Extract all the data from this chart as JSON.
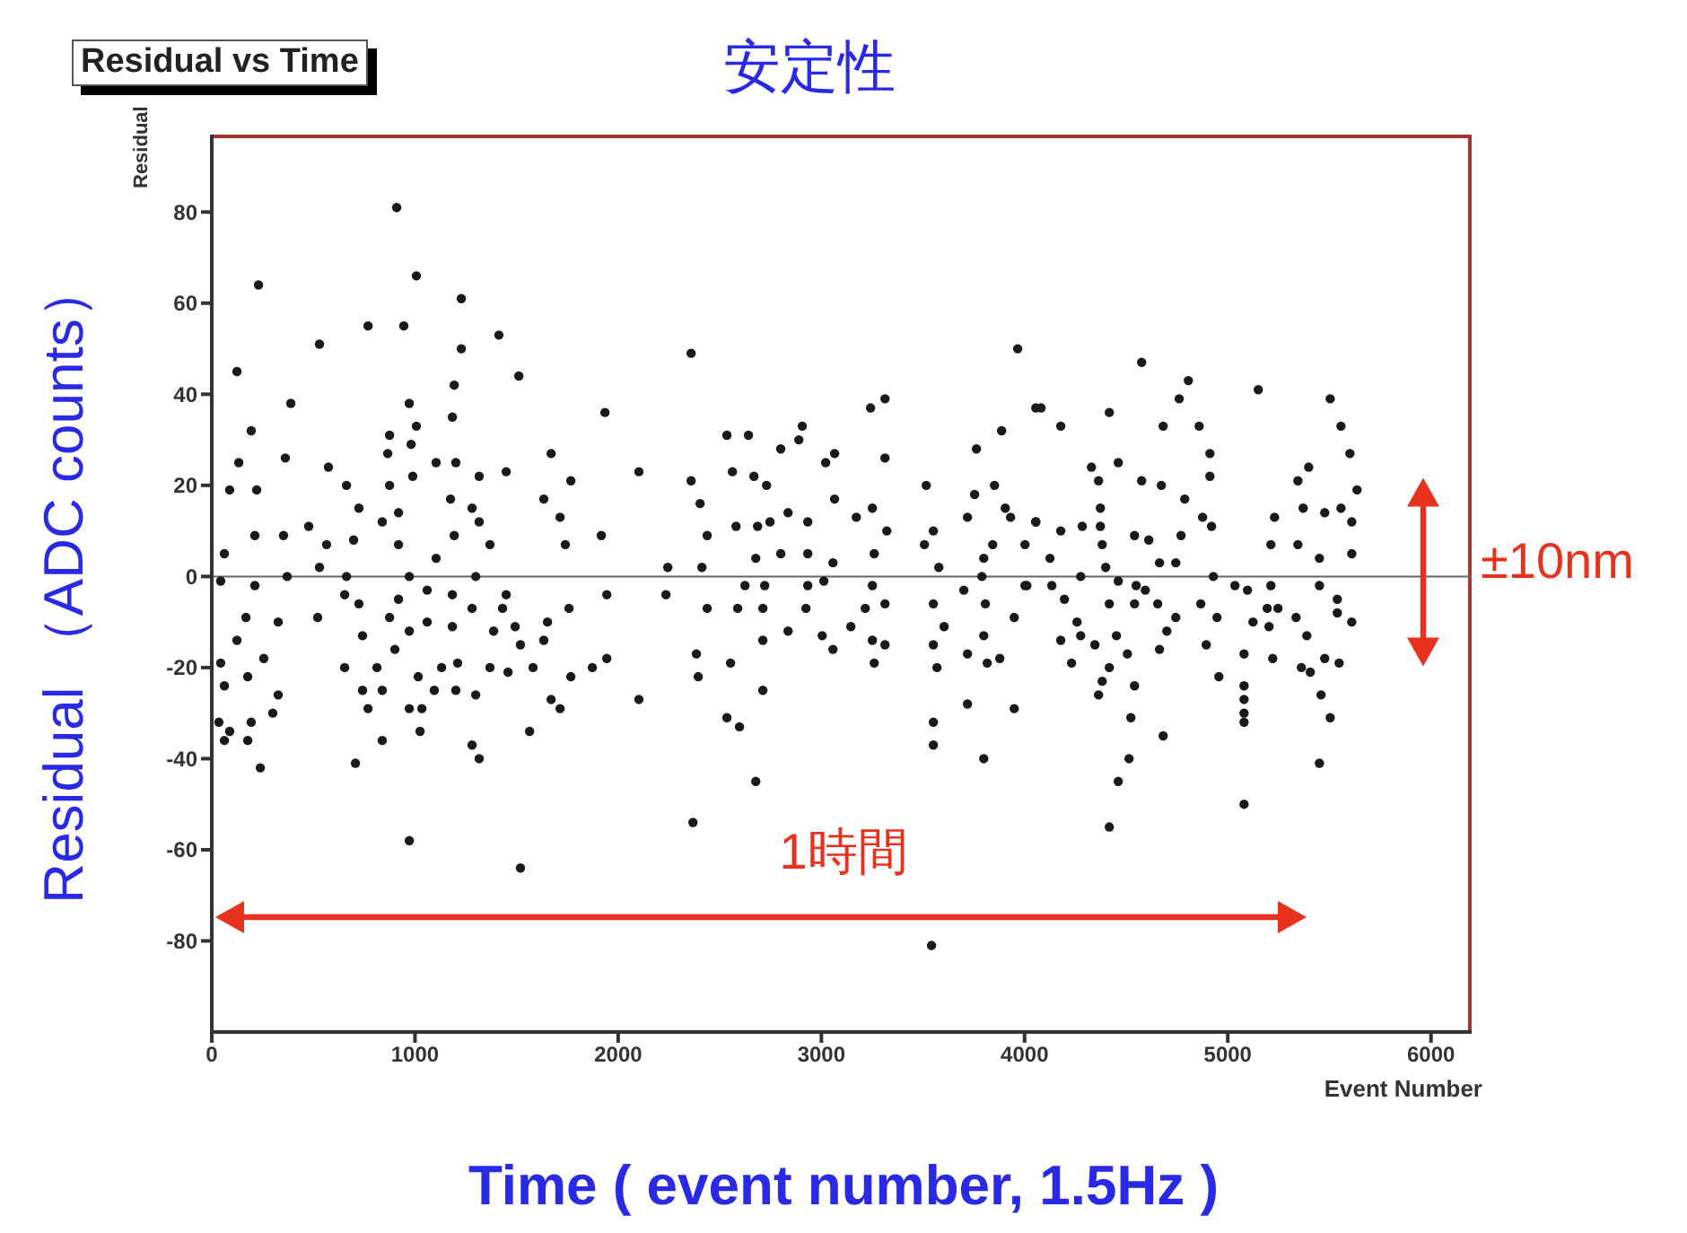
{
  "chart_data": {
    "type": "scatter",
    "title": "Residual vs Time",
    "subtitle": "安定性",
    "xlabel": "Event Number",
    "ylabel": "Residual",
    "x": [
      910,
      1007,
      230,
      1228,
      769,
      945,
      530,
      1413,
      1228,
      1511,
      124,
      1193,
      389,
      972,
      1935,
      1184,
      1007,
      194,
      875,
      981,
      866,
      1670,
      362,
      1104,
      1201,
      574,
      133,
      1449,
      663,
      875,
      989,
      1316,
      1767,
      88,
      221,
      1634,
      1175,
      724,
      919,
      1281,
      1714,
      839,
      1316,
      353,
      477,
      212,
      565,
      698,
      919,
      1193,
      1369,
      1740,
      1917,
      62,
      1104,
      530,
      371,
      663,
      972,
      1299,
      212,
      44,
      1060,
      654,
      1184,
      1449,
      1944,
      724,
      919,
      1281,
      1431,
      1758,
      168,
      327,
      521,
      875,
      1060,
      1184,
      1493,
      1652,
      742,
      972,
      1387,
      124,
      901,
      1634,
      1519,
      256,
      654,
      813,
      1210,
      1131,
      1369,
      1581,
      1873,
      1944,
      44,
      177,
      1016,
      1458,
      1767,
      62,
      742,
      839,
      1095,
      1201,
      1299,
      1670,
      1714,
      327,
      300,
      769,
      972,
      1034,
      194,
      35,
      88,
      1025,
      1564,
      839,
      177,
      62,
      1281,
      1316,
      707,
      239,
      972,
      1519,
      2359,
      2102,
      2535,
      2641,
      2359,
      2562,
      2403,
      2668,
      2730,
      2800,
      2906,
      2889,
      3021,
      3065,
      3242,
      3313,
      3313,
      2438,
      2580,
      2686,
      2747,
      2836,
      2933,
      3065,
      3172,
      3251,
      3322,
      2800,
      2933,
      3057,
      3260,
      2244,
      2412,
      2677,
      2624,
      2721,
      2933,
      3012,
      3251,
      2235,
      3313,
      2588,
      2712,
      2924,
      2438,
      3216,
      3145,
      2712,
      2836,
      3004,
      3057,
      3251,
      3313,
      3260,
      2385,
      2553,
      2394,
      2712,
      2102,
      2535,
      2597,
      2677,
      2368,
      3516,
      3551,
      3507,
      3578,
      3551,
      3604,
      3551,
      3569,
      3551,
      3551,
      3542,
      3966,
      3887,
      3763,
      3754,
      3719,
      3852,
      3905,
      3931,
      4002,
      3843,
      3799,
      3790,
      3701,
      3807,
      4002,
      3949,
      3799,
      3719,
      3816,
      3878,
      3719,
      3949,
      3799,
      4055,
      4055,
      4081,
      4178,
      4576,
      4417,
      4806,
      4761,
      4682,
      4859,
      5150,
      5504,
      5557,
      5601,
      4912,
      4912,
      4461,
      4329,
      4364,
      4576,
      4673,
      4788,
      5636,
      5345,
      5398,
      5371,
      5477,
      5557,
      5610,
      5230,
      4055,
      4178,
      4284,
      4373,
      4373,
      4541,
      4611,
      4770,
      4876,
      4920,
      4382,
      4664,
      4744,
      4399,
      4125,
      5212,
      5345,
      5451,
      5610,
      4011,
      4134,
      4196,
      4276,
      4461,
      4549,
      4594,
      4929,
      5035,
      5097,
      5212,
      5451,
      5539,
      4867,
      4655,
      4541,
      4417,
      5194,
      5247,
      5539,
      4744,
      4947,
      5124,
      4258,
      5336,
      5610,
      5203,
      4276,
      4452,
      4700,
      4178,
      4346,
      4894,
      5389,
      5080,
      4506,
      4664,
      4231,
      5221,
      5477,
      5548,
      5362,
      4417,
      5406,
      4956,
      4382,
      4541,
      5080,
      4364,
      5080,
      5459,
      4523,
      5080,
      5080,
      5504,
      4682,
      4514,
      5451,
      4461,
      5080,
      4417
    ],
    "values": [
      81,
      66,
      64,
      61,
      55,
      55,
      51,
      53,
      50,
      44,
      45,
      42,
      38,
      38,
      36,
      35,
      33,
      32,
      31,
      29,
      27,
      27,
      26,
      25,
      25,
      24,
      25,
      23,
      20,
      20,
      22,
      22,
      21,
      19,
      19,
      17,
      17,
      15,
      14,
      15,
      13,
      12,
      12,
      9,
      11,
      9,
      7,
      8,
      7,
      9,
      7,
      7,
      9,
      5,
      4,
      2,
      0,
      0,
      0,
      0,
      -2,
      -1,
      -3,
      -4,
      -4,
      -4,
      -4,
      -6,
      -5,
      -7,
      -7,
      -7,
      -9,
      -10,
      -9,
      -9,
      -10,
      -11,
      -11,
      -10,
      -13,
      -12,
      -12,
      -14,
      -16,
      -14,
      -15,
      -18,
      -20,
      -20,
      -19,
      -20,
      -20,
      -20,
      -20,
      -18,
      -19,
      -22,
      -22,
      -21,
      -22,
      -24,
      -25,
      -25,
      -25,
      -25,
      -26,
      -27,
      -29,
      -26,
      -30,
      -29,
      -29,
      -29,
      -32,
      -32,
      -34,
      -34,
      -34,
      -36,
      -36,
      -36,
      -37,
      -40,
      -41,
      -42,
      -58,
      -64,
      49,
      23,
      31,
      31,
      21,
      23,
      16,
      22,
      20,
      28,
      33,
      30,
      25,
      27,
      37,
      39,
      26,
      9,
      11,
      11,
      12,
      14,
      12,
      17,
      13,
      15,
      10,
      5,
      5,
      3,
      5,
      2,
      2,
      4,
      -2,
      -2,
      -2,
      -1,
      -2,
      -4,
      -6,
      -7,
      -7,
      -7,
      -7,
      -7,
      -11,
      -14,
      -12,
      -13,
      -16,
      -14,
      -15,
      -19,
      -17,
      -19,
      -22,
      -25,
      -27,
      -31,
      -33,
      -45,
      -54,
      20,
      10,
      7,
      2,
      -6,
      -11,
      -15,
      -20,
      -32,
      -37,
      -81,
      50,
      32,
      28,
      18,
      13,
      20,
      15,
      13,
      7,
      7,
      4,
      0,
      -3,
      -6,
      -2,
      -9,
      -13,
      -17,
      -19,
      -18,
      -28,
      -29,
      -40,
      12,
      37,
      37,
      33,
      47,
      36,
      43,
      39,
      33,
      33,
      41,
      39,
      33,
      27,
      27,
      22,
      25,
      24,
      21,
      21,
      20,
      17,
      19,
      21,
      24,
      15,
      14,
      15,
      12,
      13,
      12,
      10,
      11,
      15,
      11,
      9,
      8,
      9,
      13,
      11,
      7,
      3,
      3,
      2,
      4,
      7,
      7,
      4,
      5,
      -2,
      -2,
      -5,
      0,
      -1,
      -2,
      -3,
      0,
      -2,
      -3,
      -2,
      -2,
      -5,
      -6,
      -6,
      -6,
      -6,
      -7,
      -7,
      -8,
      -9,
      -9,
      -10,
      -10,
      -9,
      -10,
      -11,
      -13,
      -13,
      -12,
      -14,
      -15,
      -15,
      -13,
      -17,
      -17,
      -16,
      -19,
      -18,
      -18,
      -19,
      -20,
      -20,
      -21,
      -22,
      -23,
      -24,
      -24,
      -26,
      -27,
      -26,
      -31,
      -30,
      -32,
      -31,
      -35,
      -40,
      -41,
      -45,
      -50,
      -55
    ],
    "color": "#1a1a1a",
    "marker": "circle",
    "xlim": [
      0,
      6200
    ],
    "xticks": [
      0,
      1000,
      2000,
      3000,
      4000,
      5000,
      6000
    ],
    "ylim": [
      -100,
      97
    ],
    "yticks": [
      -80,
      -60,
      -40,
      -20,
      0,
      20,
      40,
      60,
      80
    ],
    "ref_lines": [
      {
        "axis": "y",
        "value": 0,
        "color": "#666666"
      }
    ],
    "grid": false,
    "legend": false,
    "annotations": [
      "Residual （ADC counts）",
      "Time ( event number, 1.5Hz )",
      "1時間",
      "±10nm"
    ]
  }
}
